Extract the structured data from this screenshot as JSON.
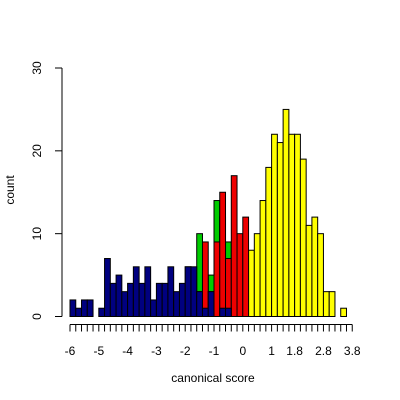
{
  "chart_data": {
    "type": "bar",
    "title": "",
    "xlabel": "canonical score",
    "ylabel": "count",
    "xlim": [
      -6,
      4
    ],
    "ylim": [
      0,
      30
    ],
    "bin_width": 0.2,
    "x_ticks": [
      -6,
      -5.8,
      -5.6,
      -5.4,
      -5.2,
      -5,
      -4.8,
      -4.6,
      -4.4,
      -4.2,
      -4,
      -3.8,
      -3.6,
      -3.4,
      -3.2,
      -3,
      -2.8,
      -2.6,
      -2.4,
      -2.2,
      -2,
      -1.8,
      -1.6,
      -1.4,
      -1.2,
      -1,
      -0.8,
      -0.6,
      -0.4,
      -0.2,
      0,
      0.2,
      0.4,
      0.6,
      0.8,
      1,
      1.2,
      1.4,
      1.6,
      1.8,
      2,
      2.2,
      2.4,
      2.6,
      2.8,
      3,
      3.2,
      3.4,
      3.6,
      3.8
    ],
    "x_tick_labels": [
      {
        "x": -6,
        "label": "-6"
      },
      {
        "x": -5,
        "label": "-5"
      },
      {
        "x": -4,
        "label": "-4"
      },
      {
        "x": -3,
        "label": "-3"
      },
      {
        "x": -2,
        "label": "-2"
      },
      {
        "x": -1,
        "label": "-1"
      },
      {
        "x": 0,
        "label": "0"
      },
      {
        "x": 1,
        "label": "1"
      },
      {
        "x": 1.8,
        "label": "1.8"
      },
      {
        "x": 2.8,
        "label": "2.8"
      },
      {
        "x": 3.8,
        "label": "3.8"
      }
    ],
    "y_ticks": [
      {
        "y": 0,
        "label": "0"
      },
      {
        "y": 10,
        "label": "10"
      },
      {
        "y": 20,
        "label": "20"
      },
      {
        "y": 30,
        "label": "30"
      }
    ],
    "grid": false,
    "legend": "none",
    "series": [
      {
        "color": "#ffff00",
        "bins": [
          {
            "x0": -0.8,
            "count": 4
          },
          {
            "x0": -0.6,
            "count": 3
          },
          {
            "x0": -0.4,
            "count": 4
          },
          {
            "x0": -0.2,
            "count": 4
          },
          {
            "x0": 0,
            "count": 5
          },
          {
            "x0": 0.2,
            "count": 8
          },
          {
            "x0": 0.4,
            "count": 10
          },
          {
            "x0": 0.6,
            "count": 14
          },
          {
            "x0": 0.8,
            "count": 18
          },
          {
            "x0": 1,
            "count": 22
          },
          {
            "x0": 1.2,
            "count": 21
          },
          {
            "x0": 1.4,
            "count": 25
          },
          {
            "x0": 1.6,
            "count": 22
          },
          {
            "x0": 1.8,
            "count": 22
          },
          {
            "x0": 2,
            "count": 19
          },
          {
            "x0": 2.2,
            "count": 11
          },
          {
            "x0": 2.4,
            "count": 12
          },
          {
            "x0": 2.6,
            "count": 10
          },
          {
            "x0": 2.8,
            "count": 3
          },
          {
            "x0": 3,
            "count": 3
          },
          {
            "x0": 3.4,
            "count": 1
          }
        ]
      },
      {
        "color": "#00cc00",
        "bins": [
          {
            "x0": -2,
            "count": 6
          },
          {
            "x0": -1.8,
            "count": 5
          },
          {
            "x0": -1.6,
            "count": 10
          },
          {
            "x0": -1.4,
            "count": 5
          },
          {
            "x0": -1.2,
            "count": 5
          },
          {
            "x0": -1,
            "count": 14
          },
          {
            "x0": -0.8,
            "count": 12
          },
          {
            "x0": -0.6,
            "count": 9
          }
        ]
      },
      {
        "color": "#ee0000",
        "bins": [
          {
            "x0": -1.6,
            "count": 3
          },
          {
            "x0": -1.4,
            "count": 9
          },
          {
            "x0": -1.2,
            "count": 3
          },
          {
            "x0": -1,
            "count": 9
          },
          {
            "x0": -0.8,
            "count": 15
          },
          {
            "x0": -0.6,
            "count": 7
          },
          {
            "x0": -0.4,
            "count": 17
          },
          {
            "x0": -0.2,
            "count": 10
          },
          {
            "x0": 0,
            "count": 12
          }
        ]
      },
      {
        "color": "#000080",
        "bins": [
          {
            "x0": -6,
            "count": 2
          },
          {
            "x0": -5.8,
            "count": 1
          },
          {
            "x0": -5.6,
            "count": 2
          },
          {
            "x0": -5.4,
            "count": 2
          },
          {
            "x0": -5,
            "count": 1
          },
          {
            "x0": -4.8,
            "count": 7
          },
          {
            "x0": -4.6,
            "count": 4
          },
          {
            "x0": -4.4,
            "count": 5
          },
          {
            "x0": -4.2,
            "count": 3
          },
          {
            "x0": -4,
            "count": 4
          },
          {
            "x0": -3.8,
            "count": 6
          },
          {
            "x0": -3.6,
            "count": 4
          },
          {
            "x0": -3.4,
            "count": 6
          },
          {
            "x0": -3.2,
            "count": 2
          },
          {
            "x0": -3,
            "count": 4
          },
          {
            "x0": -2.8,
            "count": 4
          },
          {
            "x0": -2.6,
            "count": 6
          },
          {
            "x0": -2.4,
            "count": 3
          },
          {
            "x0": -2.2,
            "count": 4
          },
          {
            "x0": -2,
            "count": 6
          },
          {
            "x0": -1.8,
            "count": 6
          },
          {
            "x0": -1.6,
            "count": 3
          },
          {
            "x0": -1.4,
            "count": 1
          },
          {
            "x0": -1.2,
            "count": 3
          },
          {
            "x0": -0.8,
            "count": 1
          },
          {
            "x0": -0.6,
            "count": 1
          }
        ]
      }
    ]
  }
}
